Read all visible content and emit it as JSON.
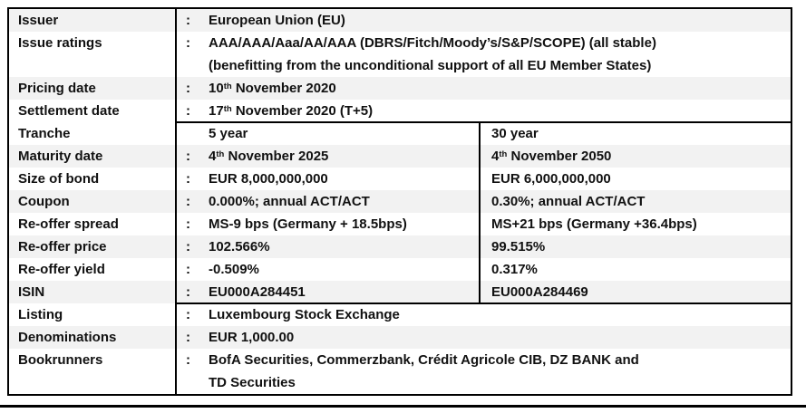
{
  "punct": {
    "colon": ":"
  },
  "colors": {
    "row_shade": "#f2f2f2",
    "border": "#000000",
    "text": "#111111",
    "background": "#ffffff"
  },
  "table": {
    "rows": {
      "issuer": {
        "label": "Issuer",
        "value": "European Union (EU)"
      },
      "ratings": {
        "label": "Issue ratings",
        "line1": "AAA/AAA/Aaa/AA/AAA (DBRS/Fitch/Moody’s/S&P/SCOPE) (all stable)",
        "line2": "(benefitting from the unconditional support of all EU Member States)"
      },
      "pricing": {
        "label": "Pricing date",
        "day": "10",
        "ordinal": "th",
        "rest": " November 2020"
      },
      "settlement": {
        "label": "Settlement date",
        "day": "17",
        "ordinal": "th",
        "rest": " November 2020 (T+5)"
      },
      "tranche": {
        "label": "Tranche",
        "col5": "5 year",
        "col30": "30 year"
      },
      "maturity": {
        "label": "Maturity date",
        "col5": {
          "day": "4",
          "ordinal": "th",
          "rest": " November 2025"
        },
        "col30": {
          "day": "4",
          "ordinal": "th",
          "rest": " November 2050"
        }
      },
      "size": {
        "label": "Size of bond",
        "col5": "EUR 8,000,000,000",
        "col30": "EUR 6,000,000,000"
      },
      "coupon": {
        "label": "Coupon",
        "col5": "0.000%; annual ACT/ACT",
        "col30": "0.30%; annual ACT/ACT"
      },
      "spread": {
        "label": "Re-offer spread",
        "col5": "MS-9 bps (Germany + 18.5bps)",
        "col30": "MS+21 bps (Germany +36.4bps)"
      },
      "price": {
        "label": "Re-offer price",
        "col5": "102.566%",
        "col30": "99.515%"
      },
      "yield": {
        "label": "Re-offer yield",
        "col5": "-0.509%",
        "col30": "0.317%"
      },
      "isin": {
        "label": "ISIN",
        "col5": "EU000A284451",
        "col30": "EU000A284469"
      },
      "listing": {
        "label": "Listing",
        "value": "Luxembourg Stock Exchange"
      },
      "denominations": {
        "label": "Denominations",
        "value": "EUR 1,000.00"
      },
      "bookrunners": {
        "label": "Bookrunners",
        "line1": "BofA Securities, Commerzbank, Crédit Agricole CIB, DZ BANK and",
        "line2": "TD Securities"
      }
    }
  }
}
